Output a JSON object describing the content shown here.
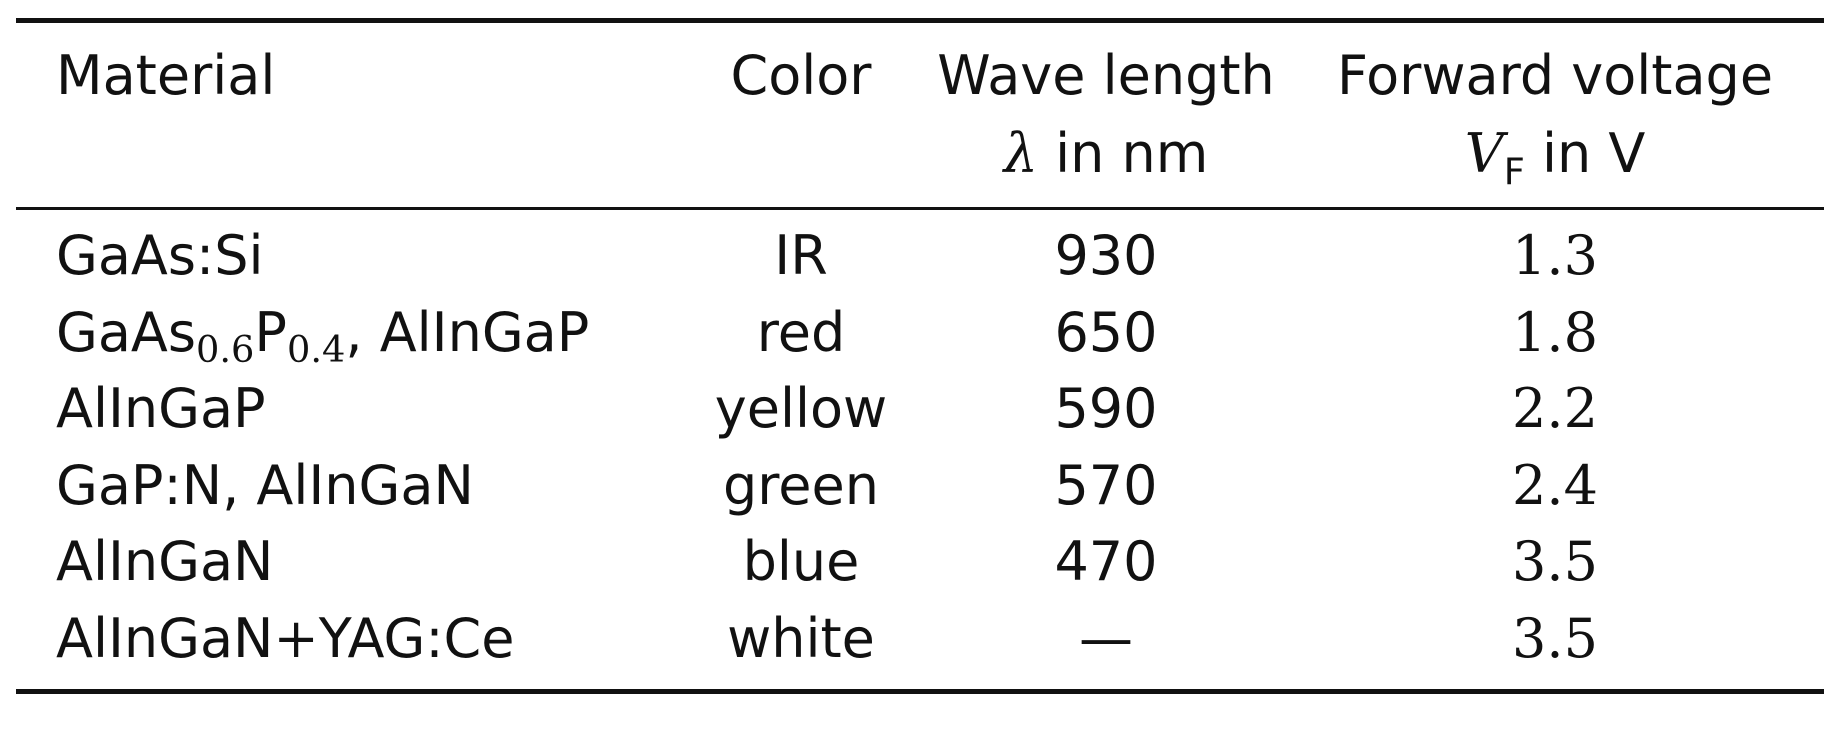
{
  "table": {
    "headers": {
      "material": "Material",
      "color": "Color",
      "wavelength_line1": "Wave length",
      "wavelength_symbol": "λ",
      "wavelength_unit": " in nm",
      "voltage_line1": "Forward voltage",
      "voltage_symbol": "V",
      "voltage_subscript": "F",
      "voltage_unit": " in V"
    },
    "rows": [
      {
        "material": "GaAs:Si",
        "color": "IR",
        "wavelength": "930",
        "voltage": "1.3"
      },
      {
        "material_parts": {
          "base": "GaAs",
          "sub1": "0.6",
          "mid": "P",
          "sub2": "0.4",
          "rest": ", AlInGaP"
        },
        "color": "red",
        "wavelength": "650",
        "voltage": "1.8"
      },
      {
        "material": "AlInGaP",
        "color": "yellow",
        "wavelength": "590",
        "voltage": "2.2"
      },
      {
        "material": "GaP:N, AlInGaN",
        "color": "green",
        "wavelength": "570",
        "voltage": "2.4"
      },
      {
        "material": "AlInGaN",
        "color": "blue",
        "wavelength": "470",
        "voltage": "3.5"
      },
      {
        "material_parts": {
          "a": "AlInGaN",
          "plus": "+",
          "b": "YAG:Ce"
        },
        "color": "white",
        "wavelength": "—",
        "voltage": "3.5"
      }
    ]
  }
}
